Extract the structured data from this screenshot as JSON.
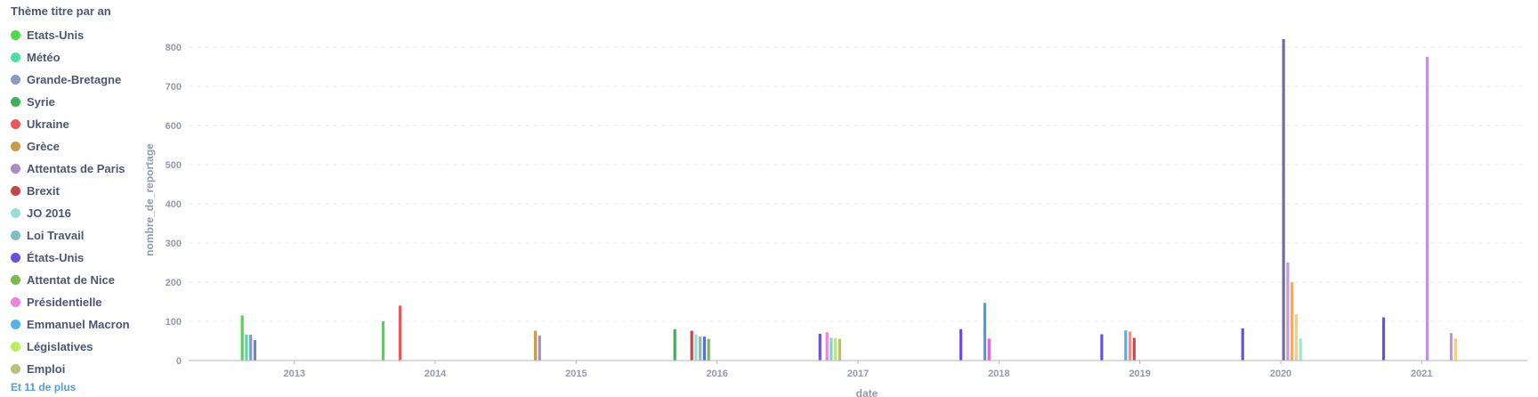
{
  "legend": {
    "title": "Thème titre par an",
    "more_label": "Et 11 de plus",
    "items": [
      {
        "label": "Etats-Unis",
        "color": "#4fd84f"
      },
      {
        "label": "Météo",
        "color": "#4fdfa0"
      },
      {
        "label": "Grande-Bretagne",
        "color": "#8a9ac0"
      },
      {
        "label": "Syrie",
        "color": "#3cb257"
      },
      {
        "label": "Ukraine",
        "color": "#ef5757"
      },
      {
        "label": "Grèce",
        "color": "#c89b4a"
      },
      {
        "label": "Attentats de Paris",
        "color": "#a98bcb"
      },
      {
        "label": "Brexit",
        "color": "#c14848"
      },
      {
        "label": "JO 2016",
        "color": "#98ddda"
      },
      {
        "label": "Loi Travail",
        "color": "#7fbfbd"
      },
      {
        "label": "États-Unis",
        "color": "#6a4fe0"
      },
      {
        "label": "Attentat de Nice",
        "color": "#7cb84a"
      },
      {
        "label": "Présidentielle",
        "color": "#ed82e0"
      },
      {
        "label": "Emmanuel Macron",
        "color": "#51b4ee"
      },
      {
        "label": "Législatives",
        "color": "#b8f05a"
      },
      {
        "label": "Emploi",
        "color": "#b6c07f"
      }
    ]
  },
  "chart_data": {
    "type": "bar",
    "xlabel": "date",
    "ylabel": "nombre_de_reportage",
    "ylim": [
      0,
      820
    ],
    "yticks": [
      0,
      100,
      200,
      300,
      400,
      500,
      600,
      700,
      800
    ],
    "xlim": [
      2012.25,
      2021.75
    ],
    "xticks": [
      "2013",
      "2014",
      "2015",
      "2016",
      "2017",
      "2018",
      "2019",
      "2020",
      "2021"
    ],
    "grid": true,
    "legend_position": "left",
    "bars": [
      {
        "x": 2012.63,
        "value": 115,
        "series": "Etats-Unis",
        "color": "#4fd84f"
      },
      {
        "x": 2012.66,
        "value": 66,
        "series": "Météo",
        "color": "#4fdfa0"
      },
      {
        "x": 2012.69,
        "value": 66,
        "series": "Grande-Bretagne",
        "color": "#8a9ac0"
      },
      {
        "x": 2012.72,
        "value": 52,
        "series": "",
        "color": "#5b8fc4"
      },
      {
        "x": 2013.63,
        "value": 100,
        "series": "Etats-Unis",
        "color": "#4fd84f"
      },
      {
        "x": 2013.75,
        "value": 140,
        "series": "Ukraine",
        "color": "#ef5757"
      },
      {
        "x": 2014.71,
        "value": 76,
        "series": "Grèce",
        "color": "#c89b4a"
      },
      {
        "x": 2014.74,
        "value": 64,
        "series": "Attentats de Paris",
        "color": "#a98bcb"
      },
      {
        "x": 2015.7,
        "value": 80,
        "series": "Syrie",
        "color": "#3cb257"
      },
      {
        "x": 2015.82,
        "value": 76,
        "series": "Brexit",
        "color": "#c14848"
      },
      {
        "x": 2015.85,
        "value": 66,
        "series": "JO 2016",
        "color": "#98ddda"
      },
      {
        "x": 2015.88,
        "value": 61,
        "series": "Loi Travail",
        "color": "#7fbfbd"
      },
      {
        "x": 2015.91,
        "value": 61,
        "series": "",
        "color": "#5b6fd0"
      },
      {
        "x": 2015.94,
        "value": 55,
        "series": "Attentat de Nice",
        "color": "#7cb84a"
      },
      {
        "x": 2016.73,
        "value": 68,
        "series": "États-Unis",
        "color": "#6a4fe0"
      },
      {
        "x": 2016.78,
        "value": 72,
        "series": "Présidentielle",
        "color": "#ed82e0"
      },
      {
        "x": 2016.81,
        "value": 58,
        "series": "",
        "color": "#7fd6c8"
      },
      {
        "x": 2016.84,
        "value": 58,
        "series": "Législatives",
        "color": "#b8f05a"
      },
      {
        "x": 2016.87,
        "value": 55,
        "series": "Emploi",
        "color": "#b6c07f"
      },
      {
        "x": 2017.73,
        "value": 80,
        "series": "États-Unis",
        "color": "#6a4fe0"
      },
      {
        "x": 2017.9,
        "value": 147,
        "series": "",
        "color": "#4f9be0"
      },
      {
        "x": 2017.93,
        "value": 56,
        "series": "",
        "color": "#f05adc"
      },
      {
        "x": 2018.73,
        "value": 67,
        "series": "États-Unis",
        "color": "#6a4fe0"
      },
      {
        "x": 2018.9,
        "value": 77,
        "series": "Emmanuel Macron",
        "color": "#51b4ee"
      },
      {
        "x": 2018.93,
        "value": 74,
        "series": "",
        "color": "#ef8e8e"
      },
      {
        "x": 2018.96,
        "value": 58,
        "series": "",
        "color": "#d64545"
      },
      {
        "x": 2019.73,
        "value": 82,
        "series": "États-Unis",
        "color": "#6a4fe0"
      },
      {
        "x": 2020.02,
        "value": 820,
        "series": "",
        "color": "#7269a6"
      },
      {
        "x": 2020.05,
        "value": 250,
        "series": "",
        "color": "#c29be0"
      },
      {
        "x": 2020.08,
        "value": 200,
        "series": "",
        "color": "#f5a968"
      },
      {
        "x": 2020.11,
        "value": 118,
        "series": "",
        "color": "#f7cc86"
      },
      {
        "x": 2020.14,
        "value": 56,
        "series": "",
        "color": "#9ee8bc"
      },
      {
        "x": 2020.73,
        "value": 110,
        "series": "États-Unis",
        "color": "#6a4fe0"
      },
      {
        "x": 2021.04,
        "value": 775,
        "series": "",
        "color": "#c68fe6"
      },
      {
        "x": 2021.21,
        "value": 70,
        "series": "",
        "color": "#b49ad8"
      },
      {
        "x": 2021.24,
        "value": 56,
        "series": "",
        "color": "#f7cc86"
      }
    ]
  }
}
